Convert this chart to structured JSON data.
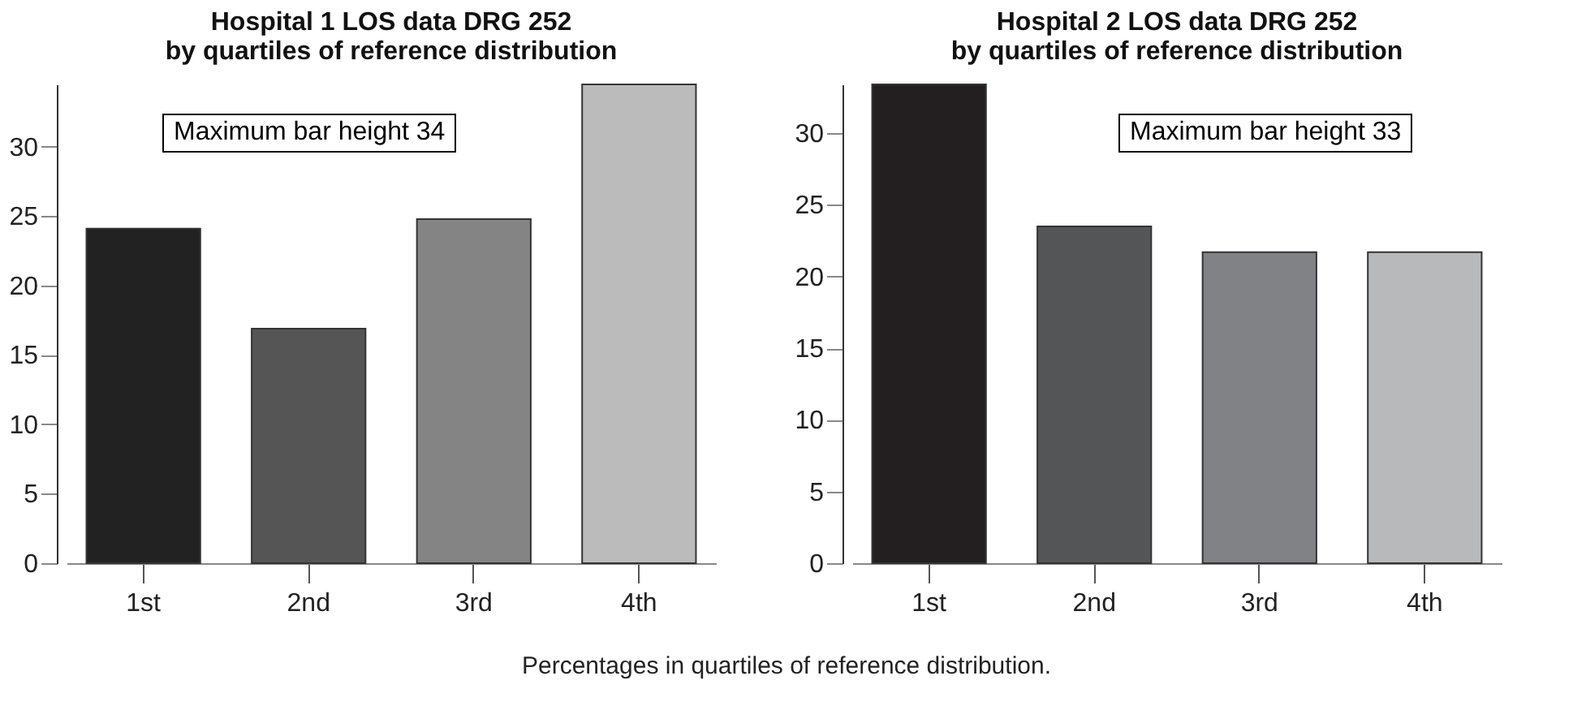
{
  "chart_data": [
    {
      "type": "bar",
      "title": "Hospital 1 LOS data DRG 252\nby quartiles of reference distribution",
      "categories": [
        "1st",
        "2nd",
        "3rd",
        "4th"
      ],
      "values": [
        24.1,
        16.9,
        24.8,
        34.5
      ],
      "colors": [
        "#222222",
        "#555555",
        "#848484",
        "#bbbbbb"
      ],
      "ylim": [
        0,
        34.5
      ],
      "yticks": [
        0,
        5,
        10,
        15,
        20,
        25,
        30
      ],
      "annotations": [
        "Maximum bar height 34",
        "Percentages in quartiles of reference distribution."
      ]
    },
    {
      "type": "bar",
      "title": "Hospital 2 LOS data DRG 252\nby quartiles of reference distribution",
      "categories": [
        "1st",
        "2nd",
        "3rd",
        "4th"
      ],
      "values": [
        33.4,
        23.5,
        21.7,
        21.7
      ],
      "colors": [
        "#231f20",
        "#545557",
        "#818285",
        "#b8b9bb"
      ],
      "ylim": [
        0,
        33.4
      ],
      "yticks": [
        0,
        5,
        10,
        15,
        20,
        25,
        30
      ],
      "annotations": [
        "Maximum bar height 33"
      ]
    }
  ]
}
